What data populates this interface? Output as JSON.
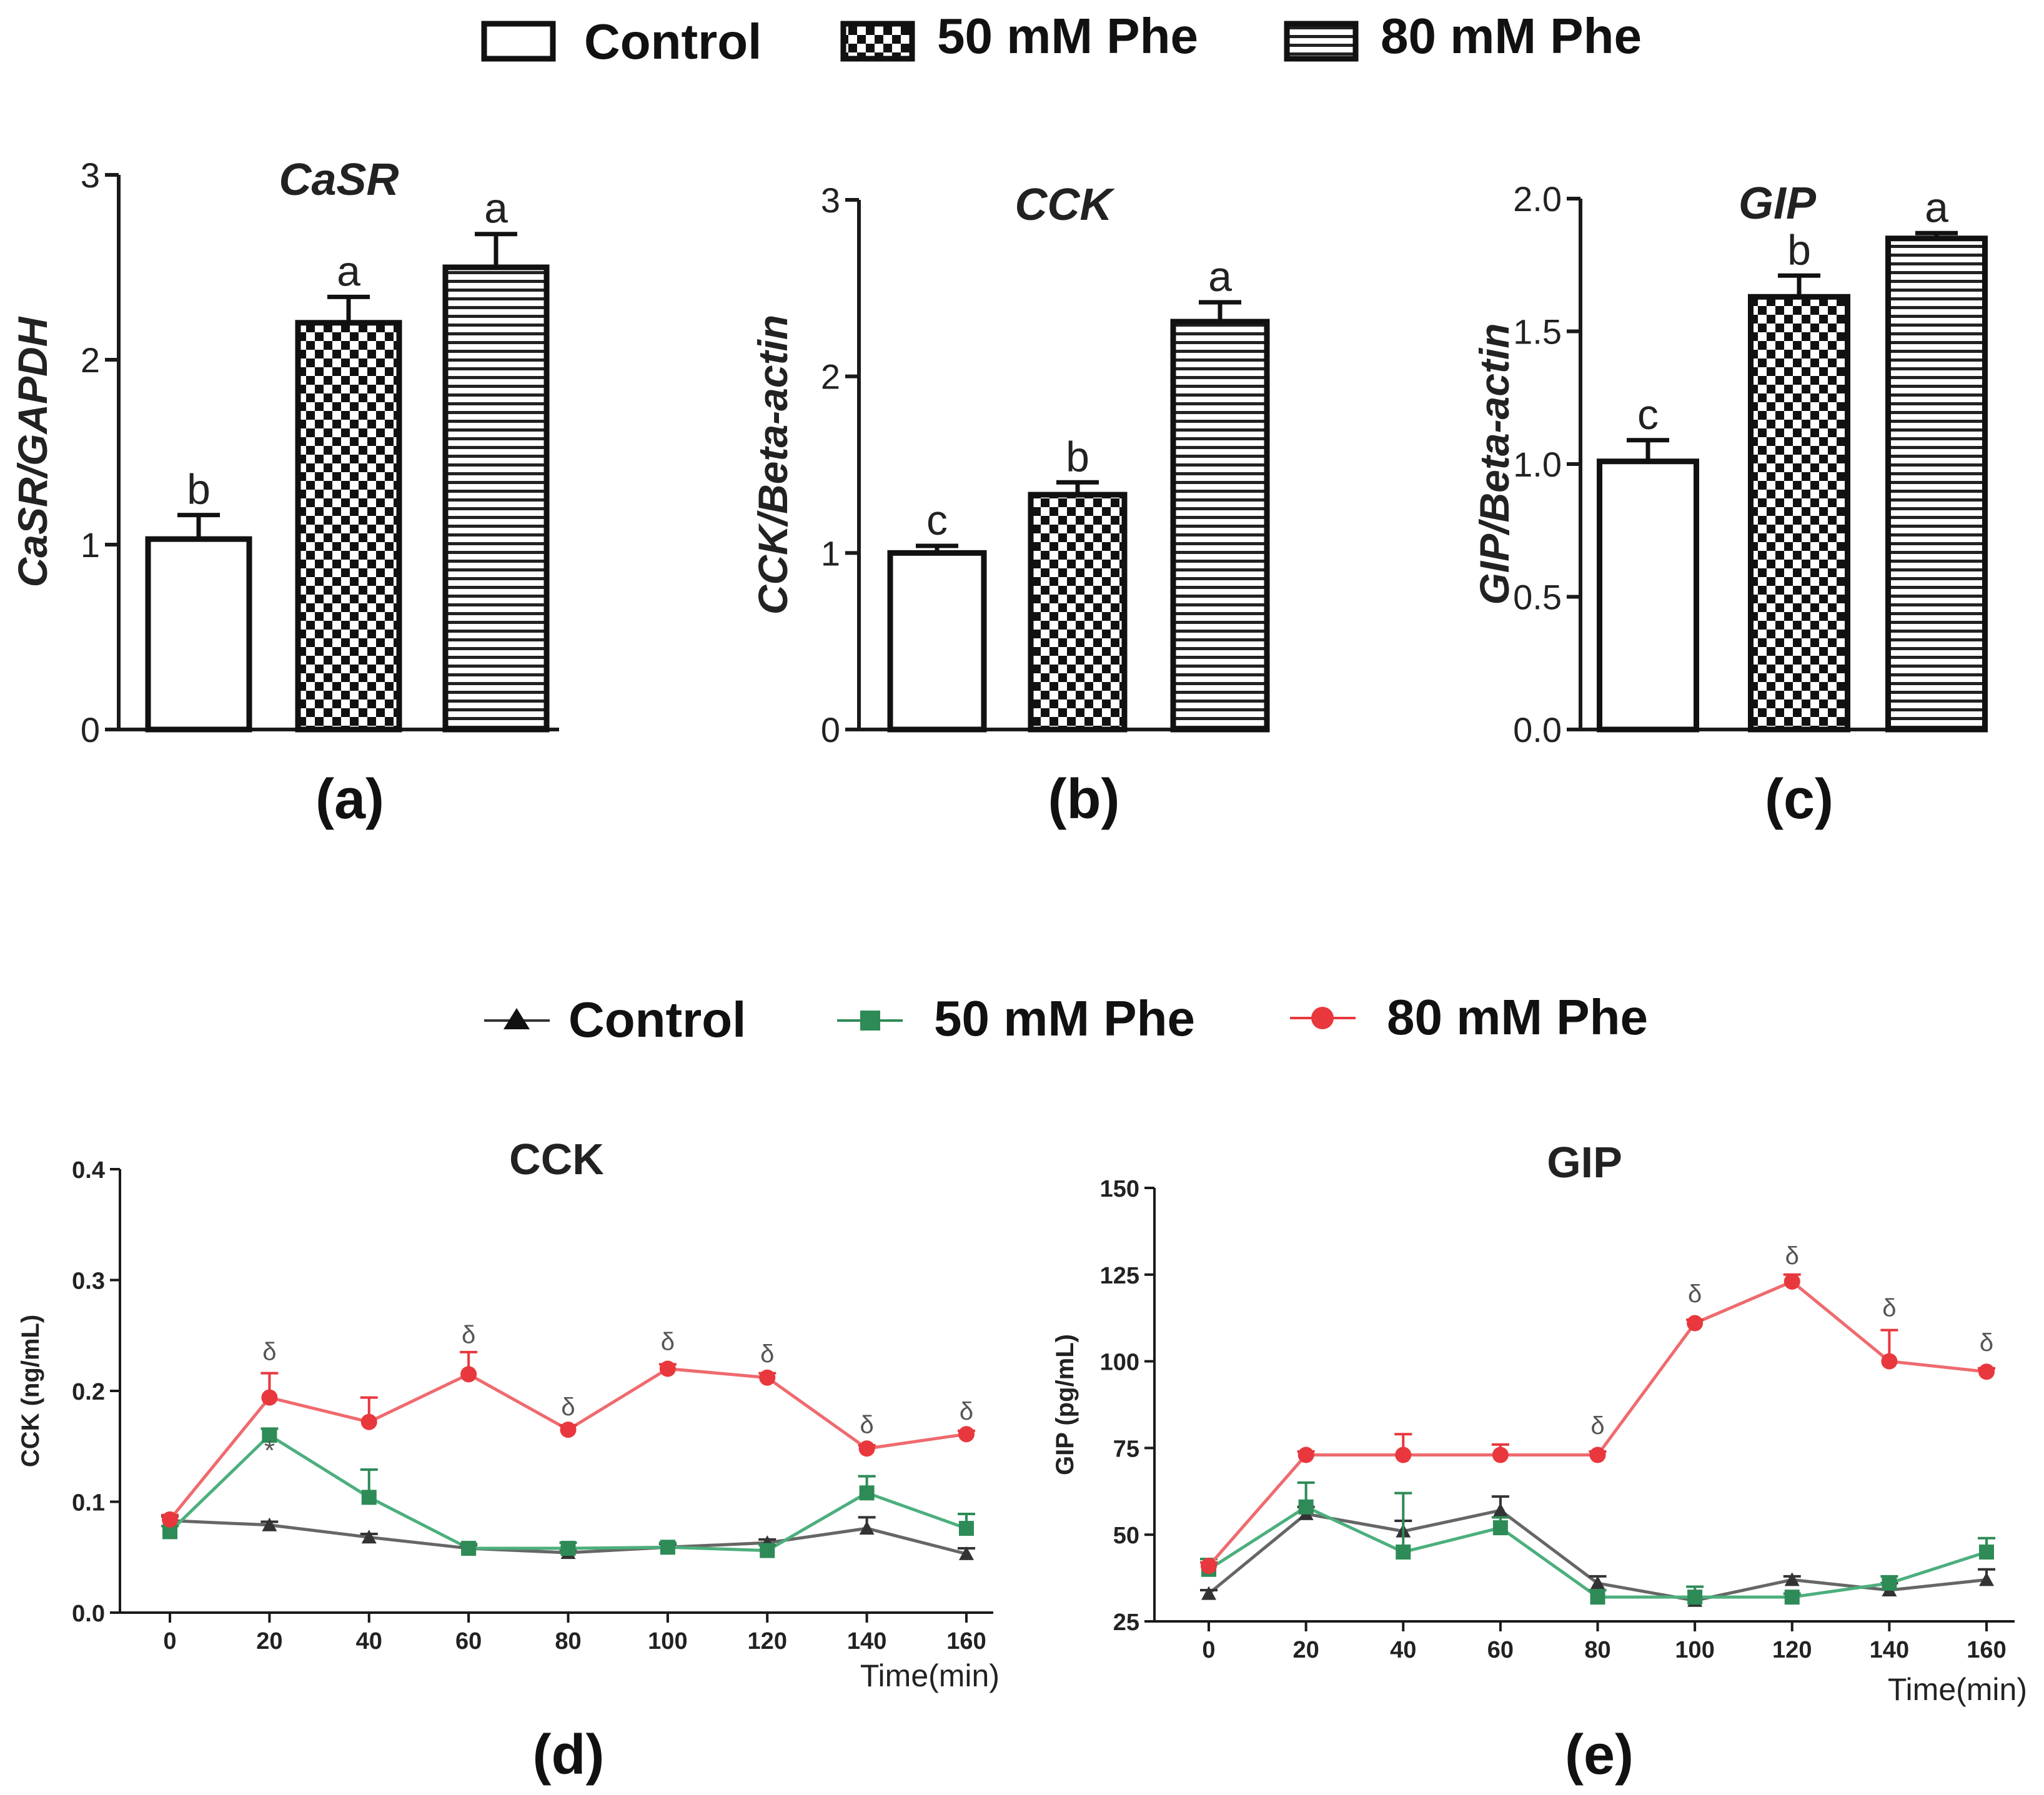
{
  "top_legend": {
    "items": [
      {
        "label": "Control",
        "pattern": "none"
      },
      {
        "label": "50 mM Phe",
        "pattern": "checker"
      },
      {
        "label": "80 mM Phe",
        "pattern": "hstripes"
      }
    ]
  },
  "bottom_legend": {
    "items": [
      {
        "label": "Control",
        "marker": "triangle"
      },
      {
        "label": "50 mM Phe",
        "marker": "square"
      },
      {
        "label": "80 mM Phe",
        "marker": "circle"
      }
    ]
  },
  "panel_labels": [
    "(a)",
    "(b)",
    "(c)",
    "(d)",
    "(e)"
  ],
  "colors": {
    "control": "#333333",
    "phe50": "#2e8b57",
    "phe80": "#e8383d",
    "axis": "#1a1a1a",
    "sig": "#555555"
  },
  "chart_data": [
    {
      "id": "a",
      "type": "bar",
      "title": "CaSR",
      "ylabel": "CaSR/GAPDH",
      "categories": [
        "Control",
        "50 mM Phe",
        "80 mM Phe"
      ],
      "values": [
        1.03,
        2.2,
        2.5
      ],
      "errors": [
        0.13,
        0.14,
        0.18
      ],
      "letters": [
        "b",
        "a",
        "a"
      ],
      "ylim": [
        0,
        3
      ],
      "yticks": [
        0,
        1,
        2,
        3
      ],
      "ytick_labels": [
        "0",
        "1",
        "2",
        "3"
      ]
    },
    {
      "id": "b",
      "type": "bar",
      "title": "CCK",
      "ylabel": "CCK/Beta-actin",
      "categories": [
        "Control",
        "50 mM Phe",
        "80 mM Phe"
      ],
      "values": [
        1.0,
        1.33,
        2.31
      ],
      "errors": [
        0.04,
        0.07,
        0.11
      ],
      "letters": [
        "c",
        "b",
        "a"
      ],
      "ylim": [
        0,
        3
      ],
      "yticks": [
        0,
        1,
        2,
        3
      ],
      "ytick_labels": [
        "0",
        "1",
        "2",
        "3"
      ]
    },
    {
      "id": "c",
      "type": "bar",
      "title": "GIP",
      "ylabel": "GIP/Beta-actin",
      "categories": [
        "Control",
        "50 mM Phe",
        "80 mM Phe"
      ],
      "values": [
        1.01,
        1.63,
        1.85
      ],
      "errors": [
        0.08,
        0.08,
        0.02
      ],
      "letters": [
        "c",
        "b",
        "a"
      ],
      "ylim": [
        0,
        2.0
      ],
      "yticks": [
        0,
        0.5,
        1.0,
        1.5,
        2.0
      ],
      "ytick_labels": [
        "0.0",
        "0.5",
        "1.0",
        "1.5",
        "2.0"
      ]
    },
    {
      "id": "d",
      "type": "line",
      "title": "CCK",
      "ylabel": "CCK (ng/mL)",
      "xlabel": "Time(min)",
      "x": [
        0,
        20,
        40,
        60,
        80,
        100,
        120,
        140,
        160
      ],
      "ylim": [
        0,
        0.4
      ],
      "yticks": [
        0,
        0.1,
        0.2,
        0.3,
        0.4
      ],
      "ytick_labels": [
        "0.0",
        "0.1",
        "0.2",
        "0.3",
        "0.4"
      ],
      "xticks": [
        0,
        20,
        40,
        60,
        80,
        100,
        120,
        140,
        160
      ],
      "xtick_labels": [
        "0",
        "20",
        "40",
        "60",
        "80",
        "100",
        "120",
        "140",
        "160"
      ],
      "series": [
        {
          "name": "Control",
          "marker": "triangle",
          "values": [
            0.083,
            0.079,
            0.068,
            0.058,
            0.054,
            0.059,
            0.063,
            0.076,
            0.053
          ],
          "errors": [
            0.004,
            0.003,
            0.003,
            0.003,
            0.003,
            0.003,
            0.003,
            0.01,
            0.005
          ]
        },
        {
          "name": "50 mM Phe",
          "marker": "square",
          "values": [
            0.073,
            0.16,
            0.104,
            0.058,
            0.058,
            0.059,
            0.056,
            0.108,
            0.076
          ],
          "errors": [
            0.005,
            0.006,
            0.025,
            0.004,
            0.005,
            0.004,
            0.005,
            0.015,
            0.013
          ]
        },
        {
          "name": "80 mM Phe",
          "marker": "circle",
          "values": [
            0.084,
            0.194,
            0.172,
            0.215,
            0.165,
            0.22,
            0.212,
            0.148,
            0.161
          ],
          "errors": [
            0.004,
            0.022,
            0.022,
            0.02,
            0.004,
            0.004,
            0.004,
            0.003,
            0.003
          ]
        }
      ],
      "annotations": [
        {
          "x": 20,
          "y": 0.228,
          "text": "δ"
        },
        {
          "x": 60,
          "y": 0.243,
          "text": "δ"
        },
        {
          "x": 80,
          "y": 0.178,
          "text": "δ"
        },
        {
          "x": 100,
          "y": 0.237,
          "text": "δ"
        },
        {
          "x": 120,
          "y": 0.226,
          "text": "δ"
        },
        {
          "x": 140,
          "y": 0.162,
          "text": "δ"
        },
        {
          "x": 160,
          "y": 0.174,
          "text": "δ"
        },
        {
          "x": 20,
          "y": 0.138,
          "text": "*"
        }
      ]
    },
    {
      "id": "e",
      "type": "line",
      "title": "GIP",
      "ylabel": "GIP (pg/mL)",
      "xlabel": "Time(min)",
      "x": [
        0,
        20,
        40,
        60,
        80,
        100,
        120,
        140,
        160
      ],
      "ylim": [
        25,
        150
      ],
      "yticks": [
        25,
        50,
        75,
        100,
        125,
        150
      ],
      "ytick_labels": [
        "25",
        "50",
        "75",
        "100",
        "125",
        "150"
      ],
      "xticks": [
        0,
        20,
        40,
        60,
        80,
        100,
        120,
        140,
        160
      ],
      "xtick_labels": [
        "0",
        "20",
        "40",
        "60",
        "80",
        "100",
        "120",
        "140",
        "160"
      ],
      "series": [
        {
          "name": "Control",
          "marker": "triangle",
          "values": [
            33,
            56,
            51,
            57,
            36,
            31,
            37,
            34,
            37
          ],
          "errors": [
            1,
            2,
            3,
            4,
            2,
            1,
            1,
            2,
            3
          ]
        },
        {
          "name": "50 mM Phe",
          "marker": "square",
          "values": [
            40,
            58,
            45,
            52,
            32,
            32,
            32,
            36,
            45
          ],
          "errors": [
            3,
            7,
            17,
            3,
            2,
            3,
            1,
            2,
            4
          ]
        },
        {
          "name": "80 mM Phe",
          "marker": "circle",
          "values": [
            41,
            73,
            73,
            73,
            73,
            111,
            123,
            100,
            97
          ],
          "errors": [
            1,
            1,
            6,
            3,
            1,
            1,
            2,
            9,
            1
          ]
        }
      ],
      "annotations": [
        {
          "x": 80,
          "y": 79,
          "text": "δ"
        },
        {
          "x": 100,
          "y": 117,
          "text": "δ"
        },
        {
          "x": 120,
          "y": 128,
          "text": "δ"
        },
        {
          "x": 140,
          "y": 113,
          "text": "δ"
        },
        {
          "x": 160,
          "y": 103,
          "text": "δ"
        }
      ]
    }
  ]
}
